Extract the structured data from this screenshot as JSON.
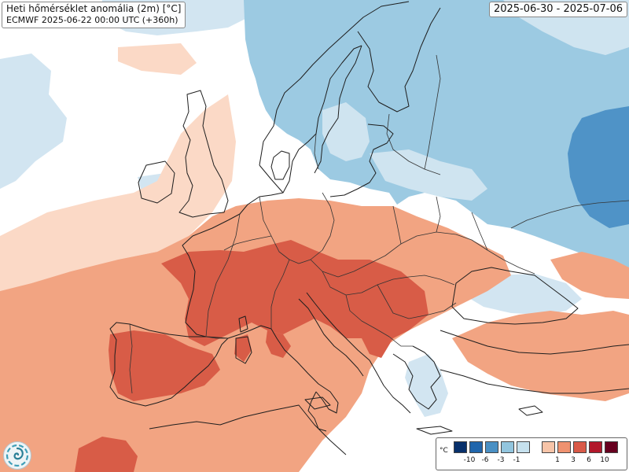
{
  "header": {
    "title": "Heti hőmérséklet anomália (2m) [°C]",
    "run_info": "ECMWF 2025-06-22 00:00 UTC (+360h)",
    "valid_period": "2025-06-30 - 2025-07-06"
  },
  "legend": {
    "unit": "°C",
    "cold_colors": [
      "#08306b",
      "#2166ac",
      "#4a90c4",
      "#92c5de",
      "#c6e1ee"
    ],
    "warm_colors": [
      "#f7c4a8",
      "#ef9270",
      "#d95a48",
      "#b2182b",
      "#67001f"
    ],
    "cold_ticks": [
      "-10",
      "-6",
      "-3",
      "-1"
    ],
    "warm_ticks": [
      "1",
      "3",
      "6",
      "10"
    ]
  },
  "map_colors": {
    "background": "#ffffff",
    "cool_light": "#cfe4f0",
    "cool_mid": "#9ccae2",
    "cool_strong": "#4f93c7",
    "warm_light": "#fbd9c6",
    "warm_mid": "#f2a482",
    "warm_strong": "#d85c47",
    "coastline": "#1e1e1e"
  },
  "logo": {
    "icon": "ecmwf-logo-icon"
  }
}
